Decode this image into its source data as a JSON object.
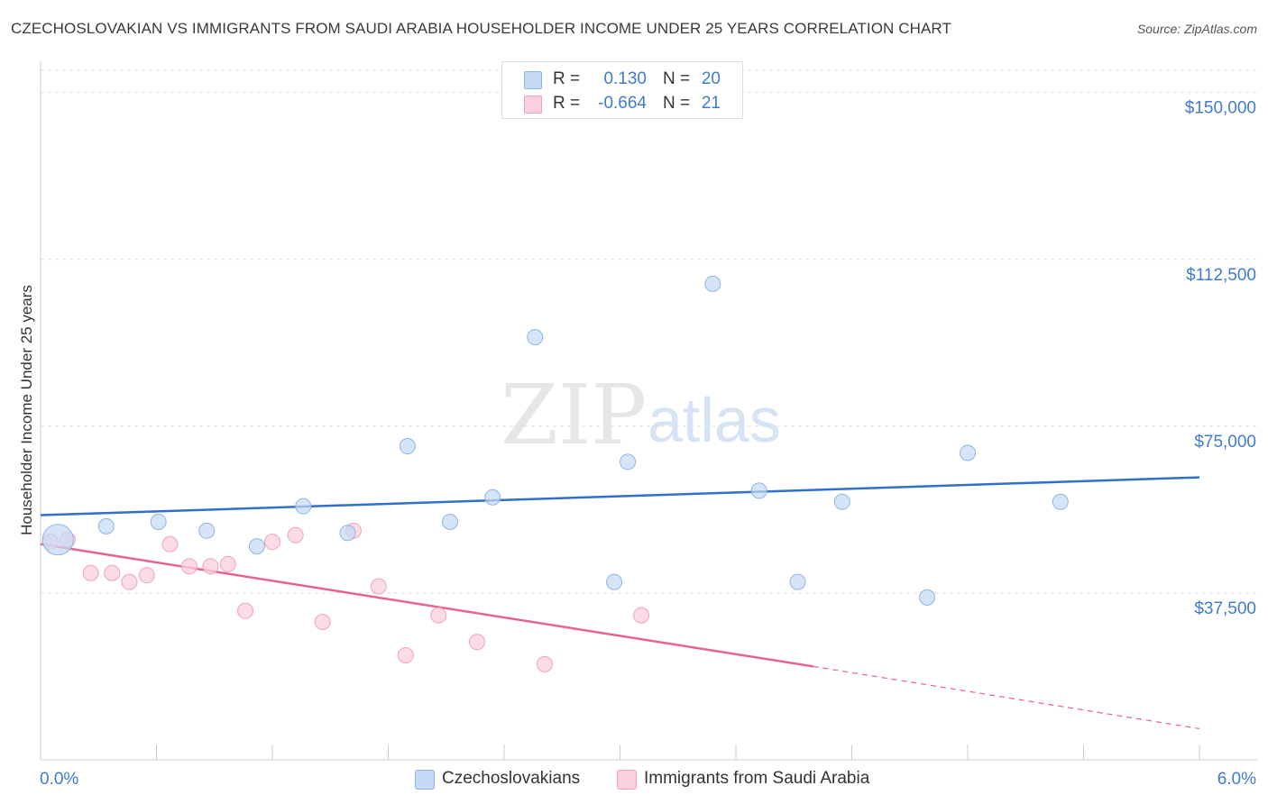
{
  "title": "CZECHOSLOVAKIAN VS IMMIGRANTS FROM SAUDI ARABIA HOUSEHOLDER INCOME UNDER 25 YEARS CORRELATION CHART",
  "source": "Source: ZipAtlas.com",
  "watermark": {
    "zip": "ZIP",
    "atlas": "atlas"
  },
  "legend": {
    "rows": [
      {
        "r_label": "R =",
        "r_value": "0.130",
        "n_label": "N =",
        "n_value": "20",
        "color": "#a9c8f0"
      },
      {
        "r_label": "R =",
        "r_value": "-0.664",
        "n_label": "N =",
        "n_value": "21",
        "color": "#f6b6ca"
      }
    ]
  },
  "bottom_legend": [
    "Czechoslovakians",
    "Immigrants from Saudi Arabia"
  ],
  "colors": {
    "blue_fill": "#c5d9f4",
    "blue_stroke": "#8fb4e6",
    "blue_line": "#2f6fce",
    "pink_fill": "#f9d0dc",
    "pink_stroke": "#f0a3bc",
    "pink_line": "#e8628f",
    "tick_label": "#3f7bd0",
    "grid": "#dddddd"
  },
  "chart_data": {
    "type": "scatter",
    "title": "CZECHOSLOVAKIAN VS IMMIGRANTS FROM SAUDI ARABIA HOUSEHOLDER INCOME UNDER 25 YEARS CORRELATION CHART",
    "xlabel": "",
    "ylabel": "Householder Income Under 25 years",
    "xlim": [
      0,
      6
    ],
    "ylim": [
      0,
      155000
    ],
    "x_tick_labels": [
      "0.0%",
      "6.0%"
    ],
    "y_ticks": [
      37500,
      75000,
      112500,
      150000
    ],
    "y_tick_labels": [
      "$37,500",
      "$75,000",
      "$112,500",
      "$150,000"
    ],
    "grid": true,
    "series": [
      {
        "name": "Czechoslovakians",
        "points": [
          {
            "x": 0.09,
            "y": 49500,
            "big": true
          },
          {
            "x": 0.34,
            "y": 52500
          },
          {
            "x": 0.61,
            "y": 53500
          },
          {
            "x": 0.86,
            "y": 51500
          },
          {
            "x": 1.12,
            "y": 48000
          },
          {
            "x": 1.36,
            "y": 57000
          },
          {
            "x": 1.59,
            "y": 51000
          },
          {
            "x": 1.9,
            "y": 70500
          },
          {
            "x": 2.12,
            "y": 53500
          },
          {
            "x": 2.34,
            "y": 59000
          },
          {
            "x": 2.56,
            "y": 95000
          },
          {
            "x": 2.97,
            "y": 40000
          },
          {
            "x": 3.04,
            "y": 67000
          },
          {
            "x": 3.48,
            "y": 107000
          },
          {
            "x": 3.72,
            "y": 60500
          },
          {
            "x": 3.92,
            "y": 40000
          },
          {
            "x": 4.15,
            "y": 58000
          },
          {
            "x": 4.59,
            "y": 36500
          },
          {
            "x": 4.8,
            "y": 69000
          },
          {
            "x": 5.28,
            "y": 58000
          }
        ],
        "trend": {
          "x0": 0.0,
          "y0": 55000,
          "x1": 6.0,
          "y1": 63500
        }
      },
      {
        "name": "Immigrants from Saudi Arabia",
        "points": [
          {
            "x": 0.05,
            "y": 49000
          },
          {
            "x": 0.14,
            "y": 49500
          },
          {
            "x": 0.26,
            "y": 42000
          },
          {
            "x": 0.37,
            "y": 42000
          },
          {
            "x": 0.46,
            "y": 40000
          },
          {
            "x": 0.55,
            "y": 41500
          },
          {
            "x": 0.67,
            "y": 48500
          },
          {
            "x": 0.77,
            "y": 43500
          },
          {
            "x": 0.88,
            "y": 43500
          },
          {
            "x": 0.97,
            "y": 44000
          },
          {
            "x": 1.06,
            "y": 33500
          },
          {
            "x": 1.2,
            "y": 49000
          },
          {
            "x": 1.32,
            "y": 50500
          },
          {
            "x": 1.46,
            "y": 31000
          },
          {
            "x": 1.62,
            "y": 51500
          },
          {
            "x": 1.75,
            "y": 39000
          },
          {
            "x": 1.89,
            "y": 23500
          },
          {
            "x": 2.06,
            "y": 32500
          },
          {
            "x": 2.26,
            "y": 26500
          },
          {
            "x": 2.61,
            "y": 21500
          },
          {
            "x": 3.11,
            "y": 32500
          }
        ],
        "trend": {
          "x0": 0.0,
          "y0": 48500,
          "x1": 4.0,
          "y1": 21000,
          "x_dash_end": 6.0,
          "y_dash_end": 7000
        }
      }
    ]
  }
}
